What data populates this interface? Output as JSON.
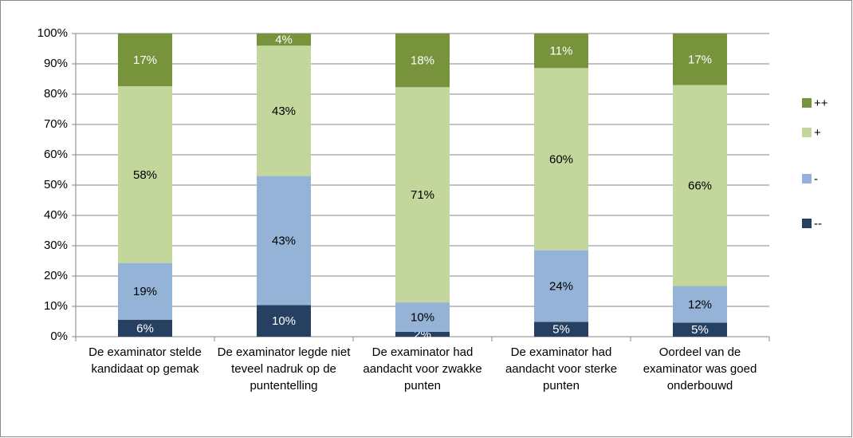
{
  "chart_data": {
    "type": "stacked_bar",
    "categories": [
      "De examinator stelde kandidaat op gemak",
      "De examinator legde niet teveel nadruk op de puntentelling",
      "De examinator had aandacht voor zwakke punten",
      "De examinator had aandacht voor sterke punten",
      "Oordeel van de examinator was goed onderbouwd"
    ],
    "series": [
      {
        "name": "--",
        "color": "#254061",
        "label_color": "#ffffff",
        "values": [
          5.6,
          10.4,
          1.6,
          4.9,
          4.6
        ],
        "value_labels": [
          "6%",
          "10%",
          "2%",
          "5%",
          "5%"
        ]
      },
      {
        "name": "-",
        "color": "#95b3d7",
        "label_color": "#000000",
        "values": [
          18.7,
          42.6,
          9.7,
          23.6,
          12.1
        ],
        "value_labels": [
          "19%",
          "43%",
          "10%",
          "24%",
          "12%"
        ]
      },
      {
        "name": "+",
        "color": "#c3d69b",
        "label_color": "#000000",
        "values": [
          58.3,
          43.0,
          71.0,
          60.1,
          66.3
        ],
        "value_labels": [
          "58%",
          "43%",
          "71%",
          "60%",
          "66%"
        ]
      },
      {
        "name": "++",
        "color": "#77933c",
        "label_color": "#ffffff",
        "values": [
          17.4,
          4.0,
          17.7,
          11.4,
          17.0
        ],
        "value_labels": [
          "17%",
          "4%",
          "18%",
          "11%",
          "17%"
        ]
      }
    ],
    "ylim": [
      0,
      100
    ],
    "yticks": [
      {
        "value": 0,
        "label": "0%"
      },
      {
        "value": 10,
        "label": "10%"
      },
      {
        "value": 20,
        "label": "20%"
      },
      {
        "value": 30,
        "label": "30%"
      },
      {
        "value": 40,
        "label": "40%"
      },
      {
        "value": 50,
        "label": "50%"
      },
      {
        "value": 60,
        "label": "60%"
      },
      {
        "value": 70,
        "label": "70%"
      },
      {
        "value": 80,
        "label": "80%"
      },
      {
        "value": 90,
        "label": "90%"
      },
      {
        "value": 100,
        "label": "100%"
      }
    ],
    "grid": true,
    "legend": "right"
  }
}
